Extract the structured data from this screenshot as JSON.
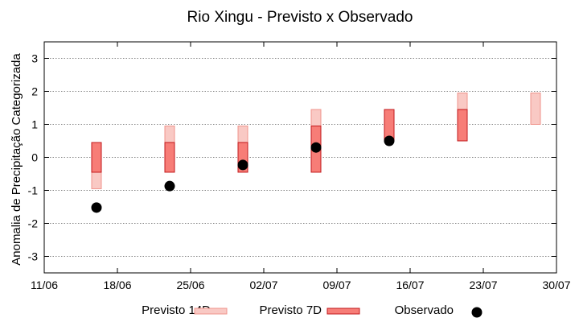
{
  "chart_data": {
    "type": "range-bar",
    "title": "Rio Xingu - Previsto x Observado",
    "ylabel": "Anomalia de Precipitação Categorizada",
    "xlabel": "",
    "ylim": [
      -3.5,
      3.5
    ],
    "yticks": [
      "3",
      "2",
      "1",
      "0",
      "-1",
      "-2",
      "-3"
    ],
    "ytick_values": [
      3,
      2,
      1,
      0,
      -1,
      -2,
      -3
    ],
    "xlim": [
      "2023-06-11",
      "2023-07-30"
    ],
    "xticks": [
      "11/06",
      "18/06",
      "25/06",
      "02/07",
      "09/07",
      "16/07",
      "23/07",
      "30/07"
    ],
    "xtick_values": [
      "2023-06-11",
      "2023-06-18",
      "2023-06-25",
      "2023-07-02",
      "2023-07-09",
      "2023-07-16",
      "2023-07-23",
      "2023-07-30"
    ],
    "grid": true,
    "legend_position": "bottom",
    "colors": {
      "previsto_14d_fill": "#f9c9c4",
      "previsto_14d_stroke": "#f0948c",
      "previsto_7d_fill": "#f77d77",
      "previsto_7d_stroke": "#c2191c",
      "observado": "#000000",
      "grid": "#888888"
    },
    "series": [
      {
        "name": "Previsto 14D",
        "kind": "range",
        "points": [
          {
            "x": "2023-06-16",
            "low": -0.95,
            "high": -0.45
          },
          {
            "x": "2023-06-23",
            "low": 0.45,
            "high": 0.95
          },
          {
            "x": "2023-06-30",
            "low": 0.45,
            "high": 0.95
          },
          {
            "x": "2023-07-07",
            "low": 0.95,
            "high": 1.45
          },
          {
            "x": "2023-07-21",
            "low": 1.45,
            "high": 1.95
          },
          {
            "x": "2023-07-28",
            "low": 1.0,
            "high": 1.95
          }
        ]
      },
      {
        "name": "Previsto 7D",
        "kind": "range",
        "points": [
          {
            "x": "2023-06-16",
            "low": -0.45,
            "high": 0.45
          },
          {
            "x": "2023-06-23",
            "low": -0.45,
            "high": 0.45
          },
          {
            "x": "2023-06-30",
            "low": -0.45,
            "high": 0.45
          },
          {
            "x": "2023-07-07",
            "low": -0.45,
            "high": 0.95
          },
          {
            "x": "2023-07-14",
            "low": 0.5,
            "high": 1.45
          },
          {
            "x": "2023-07-21",
            "low": 0.5,
            "high": 1.45
          }
        ]
      },
      {
        "name": "Observado",
        "kind": "points",
        "points": [
          {
            "x": "2023-06-16",
            "y": -1.52
          },
          {
            "x": "2023-06-23",
            "y": -0.87
          },
          {
            "x": "2023-06-30",
            "y": -0.23
          },
          {
            "x": "2023-07-07",
            "y": 0.3
          },
          {
            "x": "2023-07-14",
            "y": 0.5
          }
        ]
      }
    ]
  }
}
